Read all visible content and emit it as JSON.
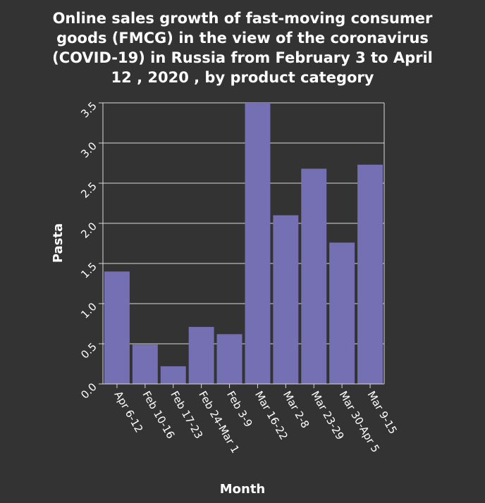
{
  "chart_data": {
    "type": "bar",
    "title_lines": [
      "Online sales growth of fast-moving consumer",
      "goods (FMCG) in the view of the coronavirus",
      "(COVID-19) in Russia from February 3 to April",
      "12 , 2020 , by product category"
    ],
    "xlabel": "Month",
    "ylabel": "Pasta",
    "categories": [
      "Apr 6-12",
      "Feb 10-16",
      "Feb 17-23",
      "Feb 24-Mar 1",
      "Feb 3-9",
      "Mar 16-22",
      "Mar 2-8",
      "Mar 23-29",
      "Mar 30-Apr 5",
      "Mar 9-15"
    ],
    "values": [
      1.4,
      0.49,
      0.22,
      0.71,
      0.62,
      3.5,
      2.1,
      2.68,
      1.76,
      2.73
    ],
    "ylim": [
      0,
      3.5
    ],
    "yticks": [
      "0.0",
      "0.5",
      "1.0",
      "1.5",
      "2.0",
      "2.5",
      "3.0",
      "3.5"
    ],
    "grid": true,
    "colors": {
      "bar": "#7570b3",
      "background": "#333333",
      "grid": "#d9d9d9",
      "text": "#ffffff"
    }
  }
}
